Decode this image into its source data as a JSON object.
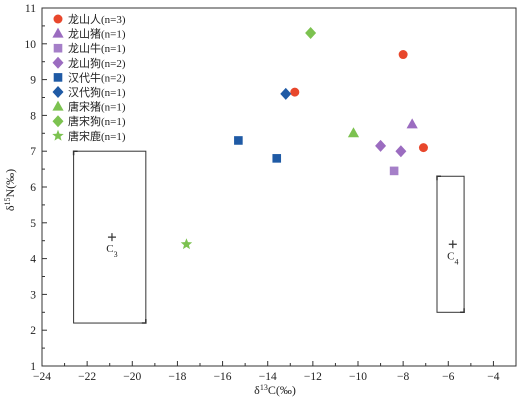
{
  "chart_data": {
    "type": "scatter",
    "xlabel": "δ¹³C(‰)",
    "ylabel": "δ¹⁵N(‰)",
    "xlim": [
      -24,
      -3
    ],
    "ylim": [
      1,
      11
    ],
    "xticks": [
      -24,
      -22,
      -20,
      -18,
      -16,
      -14,
      -12,
      -10,
      -8,
      -6,
      -4
    ],
    "yticks": [
      1,
      2,
      3,
      4,
      5,
      6,
      7,
      8,
      9,
      10,
      11
    ],
    "grid": false,
    "legend_position": "top-left",
    "series": [
      {
        "name": "龙山人(n=3)",
        "marker": "circle",
        "color": "#e8472c",
        "points": [
          [
            -12.8,
            8.65
          ],
          [
            -8.0,
            9.7
          ],
          [
            -7.1,
            7.1
          ]
        ]
      },
      {
        "name": "龙山猪(n=1)",
        "marker": "triangle",
        "color": "#9b6cc0",
        "points": [
          [
            -7.6,
            7.75
          ]
        ]
      },
      {
        "name": "龙山牛(n=1)",
        "marker": "square",
        "color": "#a57fc8",
        "points": [
          [
            -8.4,
            6.45
          ]
        ]
      },
      {
        "name": "龙山狗(n=2)",
        "marker": "diamond",
        "color": "#9b6cc0",
        "points": [
          [
            -9.0,
            7.15
          ],
          [
            -8.1,
            7.0
          ]
        ]
      },
      {
        "name": "汉代牛(n=2)",
        "marker": "square",
        "color": "#1f5aa5",
        "points": [
          [
            -15.3,
            7.3
          ],
          [
            -13.6,
            6.8
          ]
        ]
      },
      {
        "name": "汉代狗(n=1)",
        "marker": "diamond",
        "color": "#1f5aa5",
        "points": [
          [
            -13.2,
            8.6
          ]
        ]
      },
      {
        "name": "唐宋猪(n=1)",
        "marker": "triangle",
        "color": "#7cc250",
        "points": [
          [
            -10.2,
            7.5
          ]
        ]
      },
      {
        "name": "唐宋狗(n=1)",
        "marker": "diamond",
        "color": "#7cc250",
        "points": [
          [
            -12.1,
            10.3
          ]
        ]
      },
      {
        "name": "唐宋鹿(n=1)",
        "marker": "star",
        "color": "#7cc250",
        "points": [
          [
            -17.6,
            4.4
          ]
        ]
      }
    ],
    "annotations": [
      {
        "label": "C",
        "sub": "3",
        "center": [
          -20.9,
          4.6
        ],
        "box": [
          [
            -22.6,
            2.2
          ],
          [
            -19.4,
            7.0
          ]
        ]
      },
      {
        "label": "C",
        "sub": "4",
        "center": [
          -5.8,
          4.4
        ],
        "box": [
          [
            -6.5,
            2.5
          ],
          [
            -5.3,
            6.3
          ]
        ]
      }
    ]
  }
}
